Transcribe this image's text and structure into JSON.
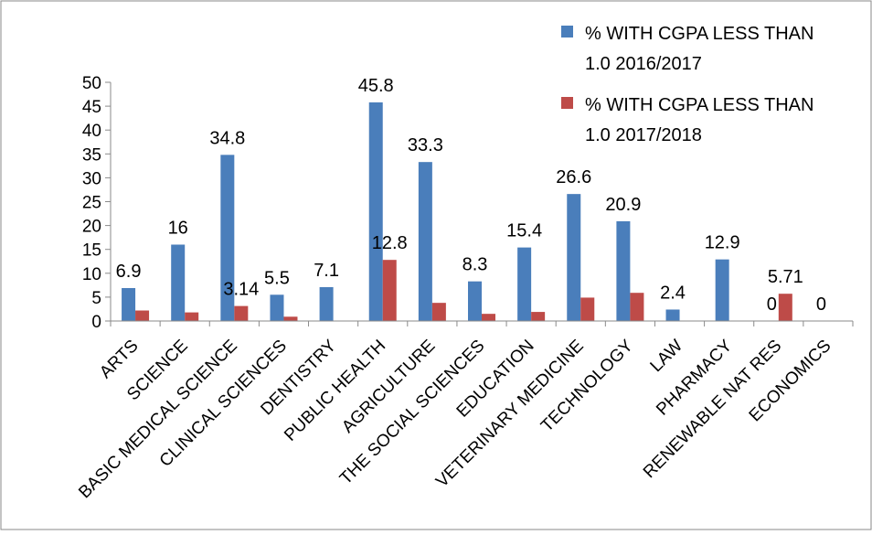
{
  "chart_data": {
    "type": "bar",
    "title": "",
    "xlabel": "",
    "ylabel": "",
    "ylim": [
      0,
      50
    ],
    "yticks": [
      0,
      5,
      10,
      15,
      20,
      25,
      30,
      35,
      40,
      45,
      50
    ],
    "grid": false,
    "legend_position": "top-right",
    "categories": [
      "ARTS",
      "SCIENCE",
      "BASIC MEDICAL SCIENCE",
      "CLINICAL SCIENCES",
      "DENTISTRY",
      "PUBLIC HEALTH",
      "AGRICULTURE",
      "THE SOCIAL SCIENCES",
      "EDUCATION",
      "VETERINARY MEDICINE",
      "TECHNOLOGY",
      "LAW",
      "PHARMACY",
      "RENEWABLE NAT RES",
      "ECONOMICS"
    ],
    "series": [
      {
        "name": "% WITH CGPA LESS THAN 1.0 2016/2017",
        "legend_lines": [
          "% WITH CGPA LESS THAN",
          "1.0 2016/2017"
        ],
        "color": "#4a7ebb",
        "values": [
          6.9,
          16,
          34.8,
          5.5,
          7.1,
          45.8,
          33.3,
          8.3,
          15.4,
          26.6,
          20.9,
          2.4,
          12.9,
          0,
          0
        ],
        "data_labels": [
          "6.9",
          "16",
          "34.8",
          "5.5",
          "7.1",
          "45.8",
          "33.3",
          "8.3",
          "15.4",
          "26.6",
          "20.9",
          "2.4",
          "12.9",
          "0",
          "0"
        ]
      },
      {
        "name": "% WITH CGPA LESS THAN 1.0 2017/2018",
        "legend_lines": [
          "% WITH CGPA LESS THAN",
          "1.0 2017/2018"
        ],
        "color": "#be4b48",
        "values": [
          2.2,
          1.8,
          3.14,
          0.9,
          0,
          12.8,
          3.8,
          1.5,
          1.9,
          4.9,
          5.9,
          0,
          0,
          5.71,
          0
        ],
        "data_labels": [
          "",
          "",
          "3.14",
          "",
          "",
          "12.8",
          "",
          "",
          "",
          "",
          "",
          "",
          "",
          "5.71",
          ""
        ]
      }
    ]
  }
}
